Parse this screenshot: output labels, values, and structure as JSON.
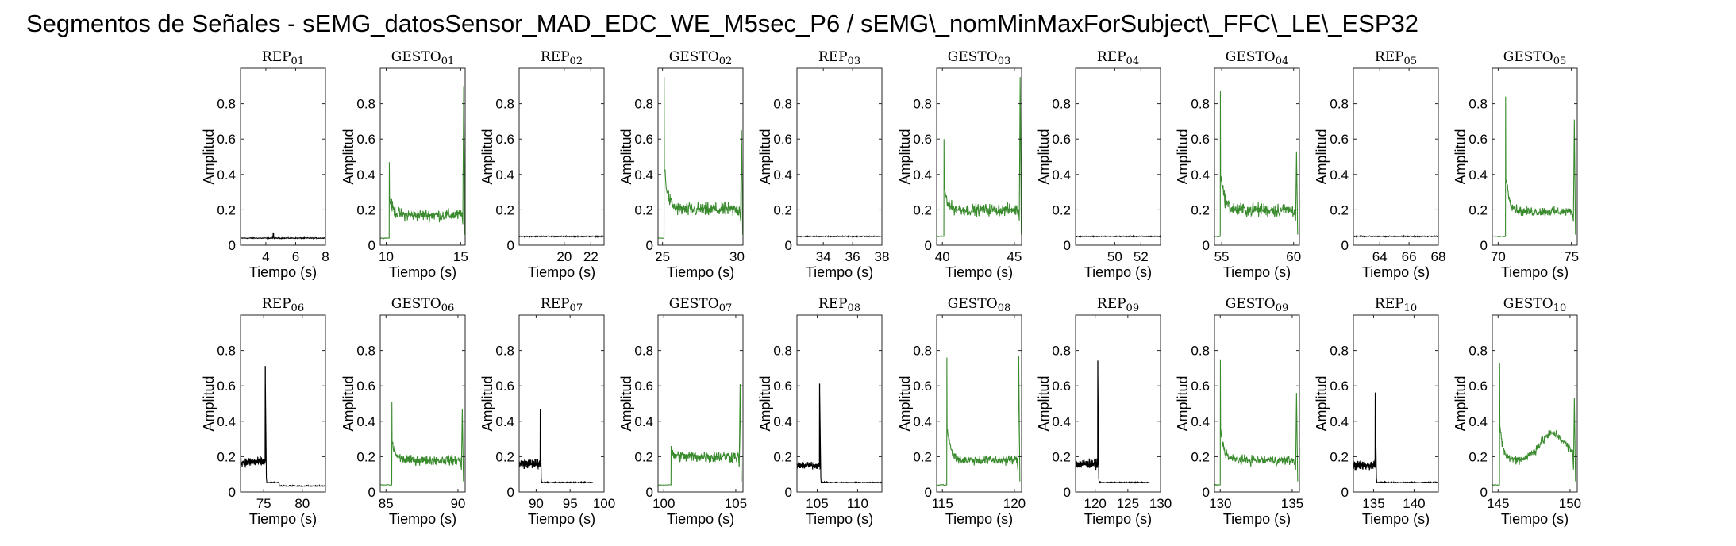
{
  "figure_title": "Segmentos de Señales - sEMG_datosSensor_MAD_EDC_WE_M5sec_P6 / sEMG\\_nomMinMaxForSubject\\_FFC\\_LE\\_ESP32",
  "colors": {
    "rep": "#000000",
    "gesto": "#3a8a2e",
    "axis": "#262626"
  },
  "chart_data": [
    {
      "type": "line",
      "title": "REP_01",
      "xlabel": "Tiempo (s)",
      "ylabel": "Amplitud",
      "xlim": [
        2.3,
        8
      ],
      "ylim": [
        0,
        1
      ],
      "xticks": [
        4,
        6,
        8
      ],
      "yticks": [
        0,
        0.2,
        0.4,
        0.6,
        0.8
      ],
      "kind": "rep",
      "trace": {
        "style": "noise",
        "baseline": 0.04,
        "noise": 0.004,
        "spikes": [
          [
            4.5,
            0.07
          ]
        ]
      }
    },
    {
      "type": "line",
      "title": "GESTO_01",
      "xlabel": "Tiempo (s)",
      "ylabel": "Amplitud",
      "xlim": [
        9.6,
        15.3
      ],
      "ylim": [
        0,
        1
      ],
      "xticks": [
        10,
        15
      ],
      "yticks": [
        0,
        0.2,
        0.4,
        0.6,
        0.8
      ],
      "kind": "gesto",
      "trace": {
        "style": "gesture",
        "pre": [
          9.6,
          10.1
        ],
        "preLevel": 0.04,
        "onset": 10.2,
        "peakStart": 0.47,
        "level": 0.17,
        "noise": 0.05,
        "endSpike": [
          15.2,
          0.9
        ]
      }
    },
    {
      "type": "line",
      "title": "REP_02",
      "xlabel": "Tiempo (s)",
      "ylabel": "Amplitud",
      "xlim": [
        16.6,
        23
      ],
      "ylim": [
        0,
        1
      ],
      "xticks": [
        20,
        22
      ],
      "yticks": [
        0,
        0.2,
        0.4,
        0.6,
        0.8
      ],
      "kind": "rep",
      "trace": {
        "style": "noise",
        "baseline": 0.05,
        "noise": 0.004,
        "spikes": []
      }
    },
    {
      "type": "line",
      "title": "GESTO_02",
      "xlabel": "Tiempo (s)",
      "ylabel": "Amplitud",
      "xlim": [
        24.7,
        30.4
      ],
      "ylim": [
        0,
        1
      ],
      "xticks": [
        25,
        30
      ],
      "yticks": [
        0,
        0.2,
        0.4,
        0.6,
        0.8
      ],
      "kind": "gesto",
      "trace": {
        "style": "gesture",
        "pre": [
          24.7,
          25.0
        ],
        "preLevel": 0.04,
        "onset": 25.1,
        "peakStart": 0.95,
        "level": 0.2,
        "noise": 0.06,
        "endSpike": [
          30.3,
          0.65
        ]
      }
    },
    {
      "type": "line",
      "title": "REP_03",
      "xlabel": "Tiempo (s)",
      "ylabel": "Amplitud",
      "xlim": [
        32.2,
        38
      ],
      "ylim": [
        0,
        1
      ],
      "xticks": [
        34,
        36,
        38
      ],
      "yticks": [
        0,
        0.2,
        0.4,
        0.6,
        0.8
      ],
      "kind": "rep",
      "trace": {
        "style": "noise",
        "baseline": 0.05,
        "noise": 0.004,
        "spikes": []
      }
    },
    {
      "type": "line",
      "title": "GESTO_03",
      "xlabel": "Tiempo (s)",
      "ylabel": "Amplitud",
      "xlim": [
        39.6,
        45.5
      ],
      "ylim": [
        0,
        1
      ],
      "xticks": [
        40,
        45
      ],
      "yticks": [
        0,
        0.2,
        0.4,
        0.6,
        0.8
      ],
      "kind": "gesto",
      "trace": {
        "style": "gesture",
        "pre": [
          39.6,
          40.0
        ],
        "preLevel": 0.05,
        "onset": 40.1,
        "peakStart": 0.6,
        "level": 0.2,
        "noise": 0.05,
        "endSpike": [
          45.4,
          0.95
        ]
      }
    },
    {
      "type": "line",
      "title": "REP_04",
      "xlabel": "Tiempo (s)",
      "ylabel": "Amplitud",
      "xlim": [
        47,
        53.5
      ],
      "ylim": [
        0,
        1
      ],
      "xticks": [
        50,
        52
      ],
      "yticks": [
        0,
        0.2,
        0.4,
        0.6,
        0.8
      ],
      "kind": "rep",
      "trace": {
        "style": "noise",
        "baseline": 0.05,
        "noise": 0.004,
        "spikes": []
      }
    },
    {
      "type": "line",
      "title": "GESTO_04",
      "xlabel": "Tiempo (s)",
      "ylabel": "Amplitud",
      "xlim": [
        54.5,
        60.4
      ],
      "ylim": [
        0,
        1
      ],
      "xticks": [
        55,
        60
      ],
      "yticks": [
        0,
        0.2,
        0.4,
        0.6,
        0.8
      ],
      "kind": "gesto",
      "trace": {
        "style": "gesture",
        "pre": [
          54.5,
          54.8
        ],
        "preLevel": 0.05,
        "onset": 54.9,
        "peakStart": 0.87,
        "level": 0.2,
        "noise": 0.06,
        "endSpike": [
          60.2,
          0.53
        ]
      }
    },
    {
      "type": "line",
      "title": "REP_05",
      "xlabel": "Tiempo (s)",
      "ylabel": "Amplitud",
      "xlim": [
        62.2,
        68
      ],
      "ylim": [
        0,
        1
      ],
      "xticks": [
        64,
        66,
        68
      ],
      "yticks": [
        0,
        0.2,
        0.4,
        0.6,
        0.8
      ],
      "kind": "rep",
      "trace": {
        "style": "noise",
        "baseline": 0.05,
        "noise": 0.004,
        "spikes": []
      }
    },
    {
      "type": "line",
      "title": "GESTO_05",
      "xlabel": "Tiempo (s)",
      "ylabel": "Amplitud",
      "xlim": [
        69.6,
        75.4
      ],
      "ylim": [
        0,
        1
      ],
      "xticks": [
        70,
        75
      ],
      "yticks": [
        0,
        0.2,
        0.4,
        0.6,
        0.8
      ],
      "kind": "gesto",
      "trace": {
        "style": "gesture",
        "pre": [
          69.6,
          70.4
        ],
        "preLevel": 0.05,
        "onset": 70.5,
        "peakStart": 0.84,
        "level": 0.19,
        "noise": 0.04,
        "endSpike": [
          75.2,
          0.71
        ]
      }
    },
    {
      "type": "line",
      "title": "REP_06",
      "xlabel": "Tiempo (s)",
      "ylabel": "Amplitud",
      "xlim": [
        72,
        83
      ],
      "ylim": [
        0,
        1
      ],
      "xticks": [
        75,
        80
      ],
      "yticks": [
        0,
        0.2,
        0.4,
        0.6,
        0.8
      ],
      "kind": "rep",
      "trace": {
        "style": "rep_active",
        "activeEnd": 75.3,
        "activeLevel": 0.17,
        "activeNoise": 0.04,
        "spike": [
          75.2,
          0.71
        ],
        "tailLevel": 0.05,
        "tailDrop": [
          77.0,
          0.03
        ]
      }
    },
    {
      "type": "line",
      "title": "GESTO_06",
      "xlabel": "Tiempo (s)",
      "ylabel": "Amplitud",
      "xlim": [
        84.6,
        90.5
      ],
      "ylim": [
        0,
        1
      ],
      "xticks": [
        85,
        90
      ],
      "yticks": [
        0,
        0.2,
        0.4,
        0.6,
        0.8
      ],
      "kind": "gesto",
      "trace": {
        "style": "gesture",
        "pre": [
          84.6,
          85.3
        ],
        "preLevel": 0.04,
        "onset": 85.4,
        "peakStart": 0.51,
        "level": 0.18,
        "noise": 0.04,
        "endSpike": [
          90.3,
          0.47
        ]
      }
    },
    {
      "type": "line",
      "title": "REP_07",
      "xlabel": "Tiempo (s)",
      "ylabel": "Amplitud",
      "xlim": [
        87.5,
        100
      ],
      "ylim": [
        0,
        1
      ],
      "xticks": [
        90,
        95,
        100
      ],
      "yticks": [
        0,
        0.2,
        0.4,
        0.6,
        0.8
      ],
      "kind": "rep",
      "trace": {
        "style": "rep_active",
        "activeEnd": 90.7,
        "activeLevel": 0.16,
        "activeNoise": 0.04,
        "spike": [
          90.6,
          0.47
        ],
        "tailLevel": 0.05,
        "tailEnd": 98.3
      }
    },
    {
      "type": "line",
      "title": "GESTO_07",
      "xlabel": "Tiempo (s)",
      "ylabel": "Amplitud",
      "xlim": [
        99.6,
        105.5
      ],
      "ylim": [
        0,
        1
      ],
      "xticks": [
        100,
        105
      ],
      "yticks": [
        0,
        0.2,
        0.4,
        0.6,
        0.8
      ],
      "kind": "gesto",
      "trace": {
        "style": "gesture",
        "pre": [
          99.6,
          100.4
        ],
        "preLevel": 0.04,
        "onset": 100.5,
        "peakStart": 0.26,
        "level": 0.2,
        "noise": 0.05,
        "endSpike": [
          105.3,
          0.61
        ]
      }
    },
    {
      "type": "line",
      "title": "REP_08",
      "xlabel": "Tiempo (s)",
      "ylabel": "Amplitud",
      "xlim": [
        102.5,
        113
      ],
      "ylim": [
        0,
        1
      ],
      "xticks": [
        105,
        110
      ],
      "yticks": [
        0,
        0.2,
        0.4,
        0.6,
        0.8
      ],
      "kind": "rep",
      "trace": {
        "style": "rep_active",
        "activeEnd": 105.4,
        "activeLevel": 0.15,
        "activeNoise": 0.03,
        "spike": [
          105.3,
          0.61
        ],
        "tailLevel": 0.05
      }
    },
    {
      "type": "line",
      "title": "GESTO_08",
      "xlabel": "Tiempo (s)",
      "ylabel": "Amplitud",
      "xlim": [
        114.6,
        120.5
      ],
      "ylim": [
        0,
        1
      ],
      "xticks": [
        115,
        120
      ],
      "yticks": [
        0,
        0.2,
        0.4,
        0.6,
        0.8
      ],
      "kind": "gesto",
      "trace": {
        "style": "gesture",
        "pre": [
          114.6,
          115.2
        ],
        "preLevel": 0.04,
        "onset": 115.3,
        "peakStart": 0.76,
        "level": 0.18,
        "noise": 0.04,
        "endSpike": [
          120.3,
          0.77
        ]
      }
    },
    {
      "type": "line",
      "title": "REP_09",
      "xlabel": "Tiempo (s)",
      "ylabel": "Amplitud",
      "xlim": [
        117,
        130
      ],
      "ylim": [
        0,
        1
      ],
      "xticks": [
        120,
        125,
        130
      ],
      "yticks": [
        0,
        0.2,
        0.4,
        0.6,
        0.8
      ],
      "kind": "rep",
      "trace": {
        "style": "rep_active",
        "activeEnd": 120.5,
        "activeLevel": 0.16,
        "activeNoise": 0.04,
        "spike": [
          120.4,
          0.74
        ],
        "tailLevel": 0.05,
        "tailEnd": 128.3
      }
    },
    {
      "type": "line",
      "title": "GESTO_09",
      "xlabel": "Tiempo (s)",
      "ylabel": "Amplitud",
      "xlim": [
        129.6,
        135.5
      ],
      "ylim": [
        0,
        1
      ],
      "xticks": [
        130,
        135
      ],
      "yticks": [
        0,
        0.2,
        0.4,
        0.6,
        0.8
      ],
      "kind": "gesto",
      "trace": {
        "style": "gesture",
        "pre": [
          129.6,
          129.9
        ],
        "preLevel": 0.04,
        "onset": 130.0,
        "peakStart": 0.75,
        "level": 0.18,
        "noise": 0.04,
        "endSpike": [
          135.3,
          0.56
        ]
      }
    },
    {
      "type": "line",
      "title": "REP_10",
      "xlabel": "Tiempo (s)",
      "ylabel": "Amplitud",
      "xlim": [
        132.5,
        143
      ],
      "ylim": [
        0,
        1
      ],
      "xticks": [
        135,
        140
      ],
      "yticks": [
        0,
        0.2,
        0.4,
        0.6,
        0.8
      ],
      "kind": "rep",
      "trace": {
        "style": "rep_active",
        "activeEnd": 135.3,
        "activeLevel": 0.15,
        "activeNoise": 0.04,
        "spike": [
          135.2,
          0.56
        ],
        "tailLevel": 0.05
      }
    },
    {
      "type": "line",
      "title": "GESTO_10",
      "xlabel": "Tiempo (s)",
      "ylabel": "Amplitud",
      "xlim": [
        144.6,
        150.5
      ],
      "ylim": [
        0,
        1
      ],
      "xticks": [
        145,
        150
      ],
      "yticks": [
        0,
        0.2,
        0.4,
        0.6,
        0.8
      ],
      "kind": "gesto",
      "trace": {
        "style": "gesture_bump",
        "pre": [
          144.6,
          145.0
        ],
        "preLevel": 0.04,
        "onset": 145.1,
        "peakStart": 0.73,
        "level": 0.18,
        "noise": 0.04,
        "bumpCenter": 148.8,
        "bumpHeight": 0.15,
        "endSpike": [
          150.3,
          0.53
        ]
      }
    }
  ]
}
